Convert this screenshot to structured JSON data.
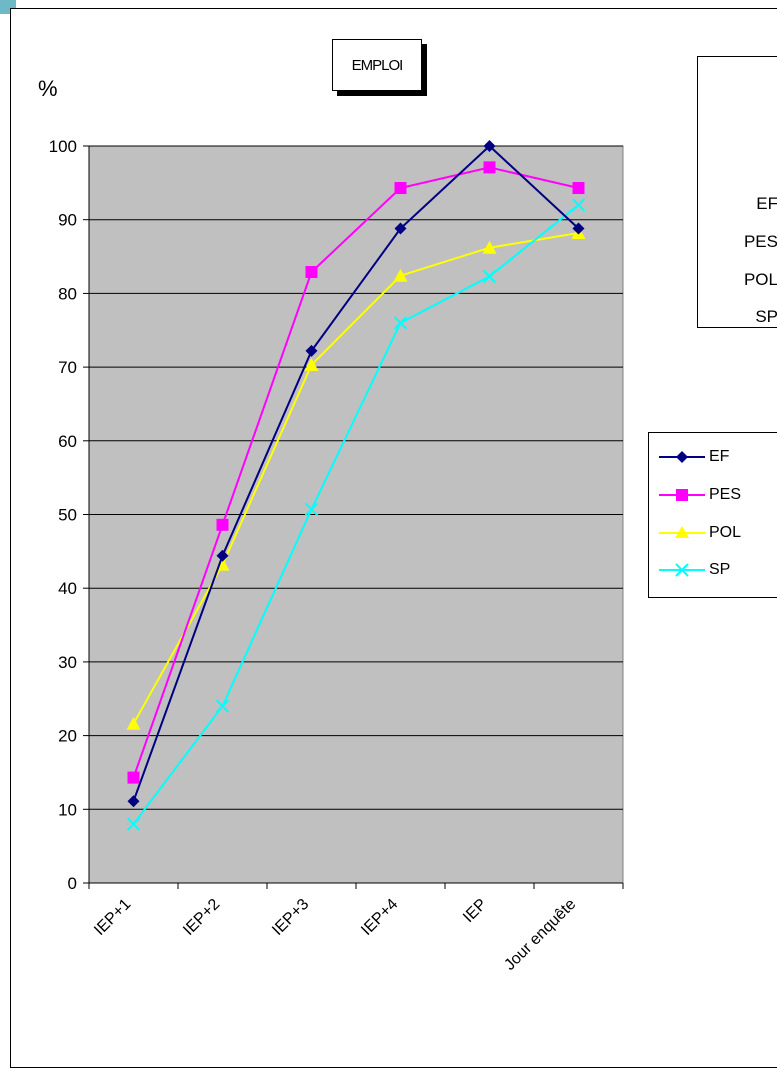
{
  "chart_data": {
    "type": "line",
    "title": "EMPLOI",
    "ylabel": "%",
    "xlabel": "",
    "ylim": [
      0,
      100
    ],
    "yticks": [
      0,
      10,
      20,
      30,
      40,
      50,
      60,
      70,
      80,
      90,
      100
    ],
    "categories": [
      "IEP+1",
      "IEP+2",
      "IEP+3",
      "IEP+4",
      "IEP",
      "Jour enquête"
    ],
    "grid": true,
    "legend_position": "right",
    "plot_background": "#c0c0c0",
    "series": [
      {
        "name": "EF",
        "color": "#000080",
        "marker": "diamond",
        "values": [
          11.1,
          44.4,
          72.2,
          88.8,
          100,
          88.8
        ]
      },
      {
        "name": "PES",
        "color": "#ff00ff",
        "marker": "square",
        "values": [
          14.3,
          48.6,
          82.9,
          94.3,
          97.1,
          94.3
        ]
      },
      {
        "name": "POL",
        "color": "#ffff00",
        "marker": "triangle",
        "values": [
          21.6,
          43.2,
          70.3,
          82.4,
          86.2,
          88.2
        ]
      },
      {
        "name": "SP",
        "color": "#00ffff",
        "marker": "x",
        "values": [
          8.0,
          24.0,
          50.7,
          76.0,
          82.3,
          92.0
        ]
      }
    ]
  },
  "side_box": {
    "items": [
      "EF",
      "PES",
      "POL",
      "SP"
    ]
  }
}
